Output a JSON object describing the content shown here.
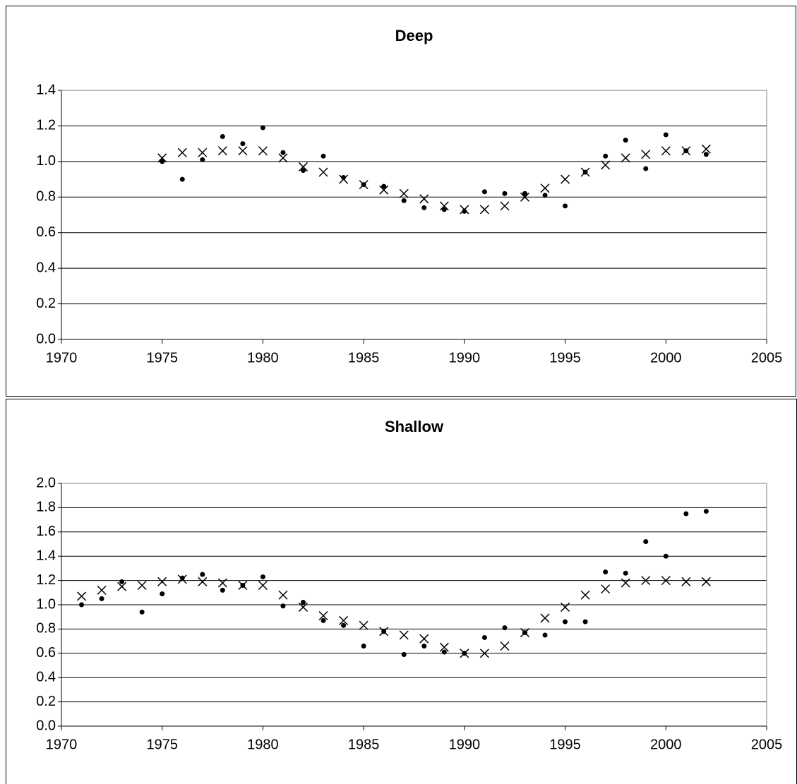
{
  "chart_data": [
    {
      "type": "scatter",
      "title": "Deep",
      "x": [
        1975,
        1976,
        1977,
        1978,
        1979,
        1980,
        1981,
        1982,
        1983,
        1984,
        1985,
        1986,
        1987,
        1988,
        1989,
        1990,
        1991,
        1992,
        1993,
        1994,
        1995,
        1996,
        1997,
        1998,
        1999,
        2000,
        2001,
        2002
      ],
      "series": [
        {
          "color": "#000000",
          "marker": "dot",
          "values": [
            1.0,
            0.9,
            1.01,
            1.14,
            1.1,
            1.19,
            1.05,
            0.95,
            1.03,
            0.91,
            0.87,
            0.86,
            0.78,
            0.74,
            0.73,
            0.72,
            0.83,
            0.82,
            0.82,
            0.81,
            0.75,
            0.94,
            1.03,
            1.12,
            0.96,
            1.15,
            1.06,
            1.04
          ]
        },
        {
          "color": "#000000",
          "marker": "cross",
          "values": [
            1.02,
            1.05,
            1.05,
            1.06,
            1.06,
            1.06,
            1.02,
            0.97,
            0.94,
            0.9,
            0.87,
            0.84,
            0.82,
            0.79,
            0.75,
            0.73,
            0.73,
            0.75,
            0.8,
            0.85,
            0.9,
            0.94,
            0.98,
            1.02,
            1.04,
            1.06,
            1.06,
            1.07
          ]
        }
      ],
      "xlim": [
        1970,
        2005
      ],
      "xticks": [
        1970,
        1975,
        1980,
        1985,
        1990,
        1995,
        2000,
        2005
      ],
      "ylim": [
        0,
        1.4
      ],
      "yticks": [
        {
          "value": 0,
          "label": "0.0"
        },
        0.2,
        0.4,
        0.6,
        0.8,
        {
          "value": 1,
          "label": "1.0"
        },
        1.2,
        1.4
      ],
      "grid": true
    },
    {
      "type": "scatter",
      "title": "Shallow",
      "x": [
        1971,
        1972,
        1973,
        1974,
        1975,
        1976,
        1977,
        1978,
        1979,
        1980,
        1981,
        1982,
        1983,
        1984,
        1985,
        1986,
        1987,
        1988,
        1989,
        1990,
        1991,
        1992,
        1993,
        1994,
        1995,
        1996,
        1997,
        1998,
        1999,
        2000,
        2001,
        2002
      ],
      "series": [
        {
          "color": "#000000",
          "marker": "dot",
          "values": [
            1.0,
            1.05,
            1.19,
            0.94,
            1.09,
            1.22,
            1.25,
            1.12,
            1.16,
            1.23,
            0.99,
            1.02,
            0.87,
            0.83,
            0.66,
            0.78,
            0.59,
            0.66,
            0.61,
            0.6,
            0.73,
            0.81,
            0.77,
            0.75,
            0.86,
            0.86,
            1.27,
            1.26,
            1.52,
            1.4,
            1.75,
            1.77
          ]
        },
        {
          "color": "#000000",
          "marker": "cross",
          "values": [
            1.07,
            1.12,
            1.15,
            1.16,
            1.19,
            1.21,
            1.19,
            1.18,
            1.16,
            1.16,
            1.08,
            0.98,
            0.91,
            0.87,
            0.83,
            0.78,
            0.75,
            0.72,
            0.65,
            0.6,
            0.6,
            0.66,
            0.77,
            0.89,
            0.98,
            1.08,
            1.13,
            1.18,
            1.2,
            1.2,
            1.19,
            1.19
          ]
        }
      ],
      "xlim": [
        1970,
        2005
      ],
      "xticks": [
        1970,
        1975,
        1980,
        1985,
        1990,
        1995,
        2000,
        2005
      ],
      "ylim": [
        0,
        2
      ],
      "yticks": [
        {
          "value": 0,
          "label": "0.0"
        },
        0.2,
        0.4,
        0.6,
        0.8,
        {
          "value": 1,
          "label": "1.0"
        },
        1.2,
        1.4,
        1.6,
        1.8,
        {
          "value": 2,
          "label": "2.0"
        }
      ],
      "grid": true
    }
  ]
}
